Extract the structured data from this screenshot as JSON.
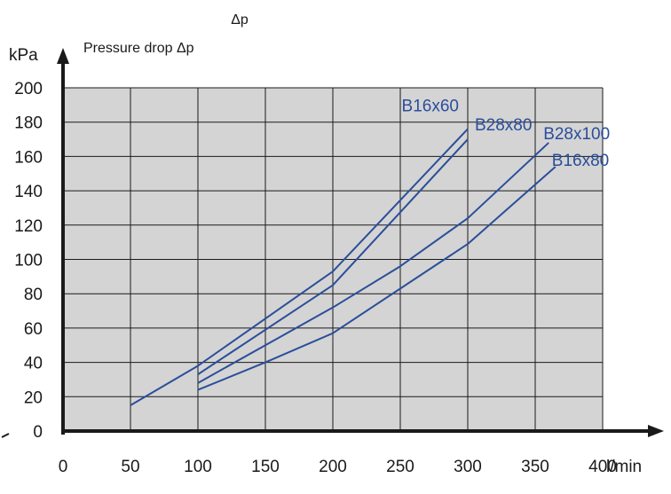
{
  "chart_data": {
    "type": "line",
    "title": "Δp",
    "ylabel": "Pressure drop Δp",
    "yunit": "kPa",
    "xunit": "l/min",
    "xlim": [
      0,
      400
    ],
    "ylim": [
      0,
      200
    ],
    "xticks": [
      "0",
      "50",
      "100",
      "150",
      "200",
      "250",
      "300",
      "350",
      "400"
    ],
    "yticks": [
      "0",
      "20",
      "40",
      "60",
      "80",
      "100",
      "120",
      "140",
      "160",
      "180",
      "200"
    ],
    "grid": true,
    "series": [
      {
        "name": "B16x60",
        "x": [
          50,
          100,
          200,
          300
        ],
        "y": [
          15,
          38,
          93,
          176
        ]
      },
      {
        "name": "B28x80",
        "x": [
          100,
          200,
          300
        ],
        "y": [
          33,
          85,
          170
        ]
      },
      {
        "name": "B28x100",
        "x": [
          100,
          200,
          250,
          300,
          360
        ],
        "y": [
          28,
          72,
          96,
          124,
          168
        ]
      },
      {
        "name": "B16x80",
        "x": [
          100,
          150,
          200,
          300,
          365
        ],
        "y": [
          24,
          40,
          57,
          109,
          154
        ]
      }
    ],
    "colors": {
      "series": "#2a4e9b",
      "plot_background": "#d4d4d4",
      "axis": "#1a1a1a",
      "grid": "#1a1a1a"
    }
  }
}
